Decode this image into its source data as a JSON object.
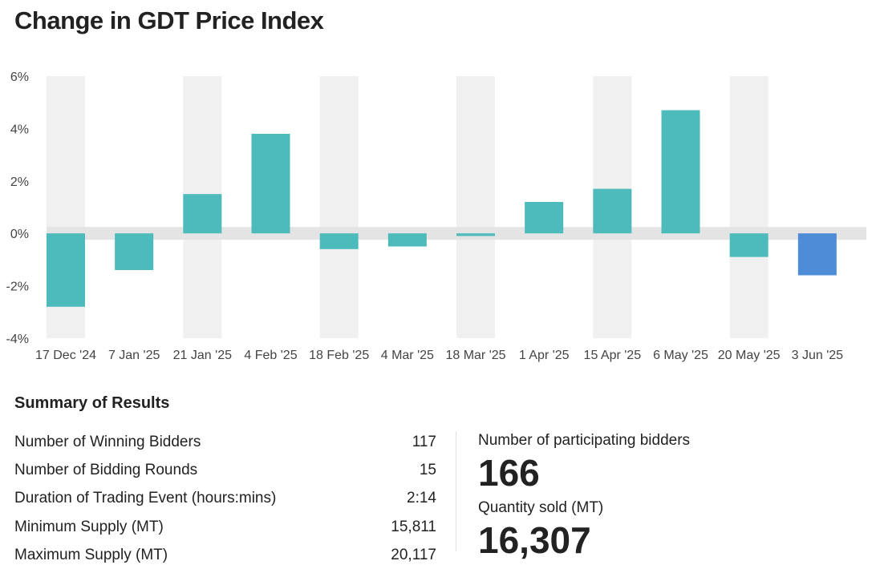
{
  "title": "Change in GDT Price Index",
  "chart_data": {
    "type": "bar",
    "categories": [
      "17 Dec '24",
      "7 Jan '25",
      "21 Jan '25",
      "4 Feb '25",
      "18 Feb '25",
      "4 Mar '25",
      "18 Mar '25",
      "1 Apr '25",
      "15 Apr '25",
      "6 May '25",
      "20 May '25",
      "3 Jun '25"
    ],
    "values": [
      -2.8,
      -1.4,
      1.5,
      3.8,
      -0.6,
      -0.5,
      -0.1,
      1.2,
      1.7,
      4.7,
      -0.9,
      -1.6
    ],
    "highlight_index": 11,
    "ylim": [
      -4,
      6
    ],
    "yticks": [
      -4,
      -2,
      0,
      2,
      4,
      6
    ],
    "ytick_labels": [
      "-4%",
      "-2%",
      "0%",
      "2%",
      "4%",
      "6%"
    ],
    "colors": {
      "bar": "#4dbbbb",
      "highlight": "#4e8cd8",
      "band": "#f0f0f0",
      "zero_band": "#e4e4e4"
    },
    "grid": false,
    "legend": "none"
  },
  "summary": {
    "heading": "Summary of Results",
    "rows": [
      {
        "label": "Number of Winning Bidders",
        "value": "117"
      },
      {
        "label": "Number of Bidding Rounds",
        "value": "15"
      },
      {
        "label": "Duration of Trading Event (hours:mins)",
        "value": "2:14"
      },
      {
        "label": "Minimum Supply (MT)",
        "value": "15,811"
      },
      {
        "label": "Maximum Supply (MT)",
        "value": "20,117"
      }
    ]
  },
  "stats": {
    "participating_label": "Number of participating bidders",
    "participating_value": "166",
    "quantity_label": "Quantity sold (MT)",
    "quantity_value": "16,307"
  }
}
